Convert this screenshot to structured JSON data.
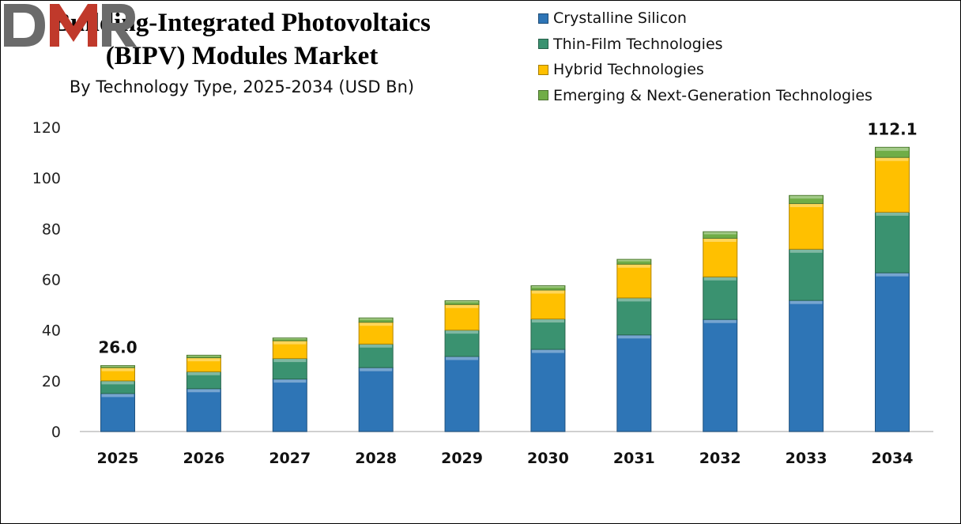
{
  "chart_data": {
    "type": "bar",
    "stacked": true,
    "title": "Building-Integrated Photovoltaics (BIPV) Modules Market",
    "title_lines": [
      "Building-Integrated Photovoltaics",
      "(BIPV) Modules Market"
    ],
    "subtitle": "By Technology Type, 2025-2034 (USD Bn)",
    "xlabel": "",
    "ylabel": "",
    "ylim": [
      0,
      120
    ],
    "yticks": [
      0,
      20,
      40,
      60,
      80,
      100,
      120
    ],
    "grid": false,
    "legend_position": "top-right",
    "categories": [
      "2025",
      "2026",
      "2027",
      "2028",
      "2029",
      "2030",
      "2031",
      "2032",
      "2033",
      "2034"
    ],
    "series": [
      {
        "name": "Crystalline Silicon",
        "color": "#2E75B6",
        "values": [
          15.0,
          16.9,
          20.7,
          25.2,
          29.6,
          32.4,
          38.1,
          44.2,
          51.7,
          62.6
        ]
      },
      {
        "name": "Thin-Film Technologies",
        "color": "#3A9270",
        "values": [
          5.0,
          6.7,
          8.1,
          9.3,
          10.4,
          12.0,
          14.6,
          16.8,
          20.2,
          23.9
        ]
      },
      {
        "name": "Hybrid Technologies",
        "color": "#FFC000",
        "values": [
          5.2,
          5.5,
          7.0,
          8.6,
          10.1,
          11.4,
          13.3,
          15.2,
          18.0,
          21.6
        ]
      },
      {
        "name": "Emerging & Next-Generation Technologies",
        "color": "#70AD47",
        "values": [
          0.8,
          1.0,
          1.1,
          1.7,
          1.5,
          1.7,
          1.9,
          2.6,
          3.2,
          4.0
        ]
      }
    ],
    "annotations": [
      {
        "category": "2025",
        "text": "26.0"
      },
      {
        "category": "2034",
        "text": "112.1"
      }
    ]
  },
  "logo": {
    "text": "DMR",
    "colors": {
      "D": "#6b6b6b",
      "M": "#c0392b",
      "R": "#6b6b6b"
    }
  }
}
